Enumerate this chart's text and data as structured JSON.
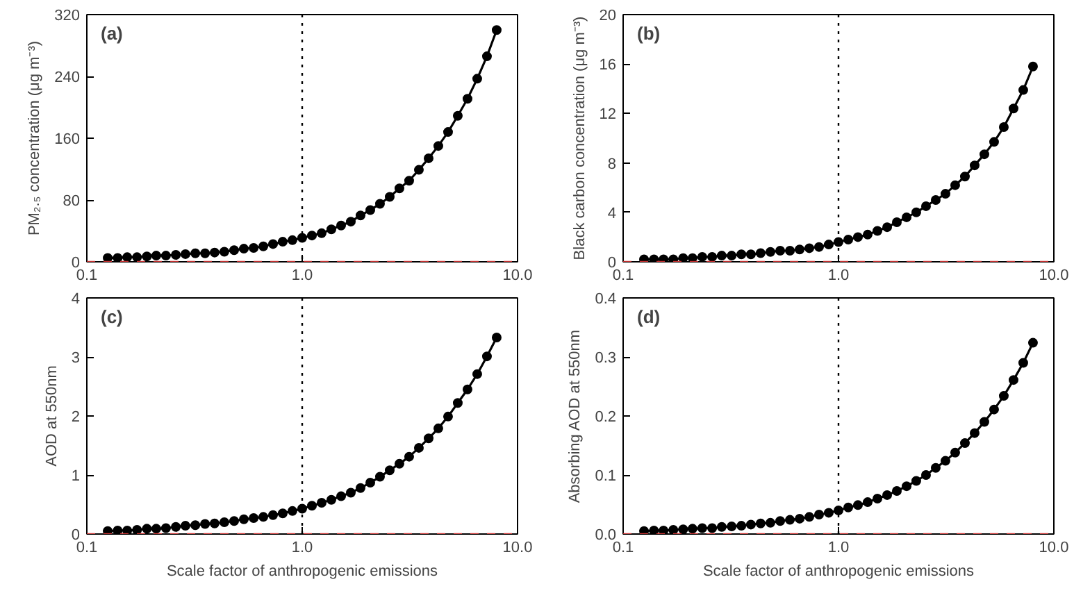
{
  "chart_data": [
    {
      "type": "line",
      "ylabel": "PM₂.₅ concentration (μg m⁻³)",
      "annotations": [
        "(a)"
      ],
      "log": "x",
      "marker": "circle",
      "line_style": "solid",
      "grid": false,
      "x": [
        0.125,
        0.139,
        0.154,
        0.171,
        0.19,
        0.21,
        0.233,
        0.259,
        0.287,
        0.319,
        0.354,
        0.392,
        0.435,
        0.483,
        0.536,
        0.595,
        0.66,
        0.732,
        0.812,
        0.901,
        1.0,
        1.11,
        1.231,
        1.366,
        1.516,
        1.682,
        1.866,
        2.071,
        2.297,
        2.549,
        2.828,
        3.138,
        3.482,
        3.864,
        4.287,
        4.757,
        5.278,
        5.856,
        6.498,
        7.21,
        8.0
      ],
      "series": [
        {
          "color": "#000000",
          "values": [
            5,
            5,
            6,
            6,
            7,
            8,
            8,
            9,
            10,
            11,
            11,
            12,
            13,
            15,
            17,
            18,
            20,
            23,
            26,
            28,
            31,
            34,
            37,
            42,
            47,
            52,
            60,
            67,
            75,
            84,
            95,
            105,
            119,
            134,
            150,
            168,
            189,
            211,
            237,
            266,
            300
          ]
        }
      ],
      "xlim": [
        0.1,
        10
      ],
      "xticks": [
        {
          "value": 0.1,
          "label": "0.1"
        },
        {
          "value": 1,
          "label": "1.0"
        },
        {
          "value": 10,
          "label": "10.0"
        }
      ],
      "ylim": [
        0,
        320
      ],
      "yticks": [
        0,
        80,
        160,
        240,
        320
      ],
      "ref_lines": [
        {
          "axis": "x",
          "value": 1,
          "color": "#000000",
          "line_style": "dotted"
        },
        {
          "axis": "y",
          "value": 0,
          "color": "#cc3333",
          "line_style": "dashed"
        }
      ]
    },
    {
      "type": "line",
      "ylabel": "Black carbon concentration (μg m⁻³)",
      "annotations": [
        "(b)"
      ],
      "log": "x",
      "marker": "circle",
      "line_style": "solid",
      "grid": false,
      "x": [
        0.125,
        0.139,
        0.154,
        0.171,
        0.19,
        0.21,
        0.233,
        0.259,
        0.287,
        0.319,
        0.354,
        0.392,
        0.435,
        0.483,
        0.536,
        0.595,
        0.66,
        0.732,
        0.812,
        0.901,
        1.0,
        1.11,
        1.231,
        1.366,
        1.516,
        1.682,
        1.866,
        2.071,
        2.297,
        2.549,
        2.828,
        3.138,
        3.482,
        3.864,
        4.287,
        4.757,
        5.278,
        5.856,
        6.498,
        7.21,
        8.0
      ],
      "series": [
        {
          "color": "#000000",
          "values": [
            0.2,
            0.2,
            0.2,
            0.2,
            0.3,
            0.3,
            0.4,
            0.4,
            0.5,
            0.5,
            0.6,
            0.6,
            0.7,
            0.8,
            0.9,
            0.9,
            1.0,
            1.1,
            1.2,
            1.4,
            1.6,
            1.8,
            2.0,
            2.2,
            2.5,
            2.8,
            3.2,
            3.6,
            4.0,
            4.5,
            5.0,
            5.5,
            6.2,
            6.9,
            7.8,
            8.7,
            9.7,
            10.9,
            12.4,
            13.9,
            15.8
          ]
        }
      ],
      "xlim": [
        0.1,
        10
      ],
      "xticks": [
        {
          "value": 0.1,
          "label": "0.1"
        },
        {
          "value": 1,
          "label": "1.0"
        },
        {
          "value": 10,
          "label": "10.0"
        }
      ],
      "ylim": [
        0,
        20
      ],
      "yticks": [
        0,
        4,
        8,
        12,
        16,
        20
      ],
      "ref_lines": [
        {
          "axis": "x",
          "value": 1,
          "color": "#000000",
          "line_style": "dotted"
        },
        {
          "axis": "y",
          "value": 0,
          "color": "#cc3333",
          "line_style": "dashed"
        }
      ]
    },
    {
      "type": "line",
      "xlabel": "Scale factor of anthropogenic emissions",
      "ylabel": "AOD at 550nm",
      "annotations": [
        "(c)"
      ],
      "log": "x",
      "marker": "circle",
      "line_style": "solid",
      "grid": false,
      "x": [
        0.125,
        0.139,
        0.154,
        0.171,
        0.19,
        0.21,
        0.233,
        0.259,
        0.287,
        0.319,
        0.354,
        0.392,
        0.435,
        0.483,
        0.536,
        0.595,
        0.66,
        0.732,
        0.812,
        0.901,
        1.0,
        1.11,
        1.231,
        1.366,
        1.516,
        1.682,
        1.866,
        2.071,
        2.297,
        2.549,
        2.828,
        3.138,
        3.482,
        3.864,
        4.287,
        4.757,
        5.278,
        5.856,
        6.498,
        7.21,
        8.0
      ],
      "series": [
        {
          "color": "#000000",
          "values": [
            0.05,
            0.06,
            0.06,
            0.07,
            0.09,
            0.09,
            0.1,
            0.12,
            0.14,
            0.15,
            0.17,
            0.18,
            0.2,
            0.22,
            0.25,
            0.27,
            0.29,
            0.32,
            0.35,
            0.39,
            0.43,
            0.48,
            0.53,
            0.58,
            0.64,
            0.7,
            0.78,
            0.87,
            0.97,
            1.08,
            1.19,
            1.31,
            1.46,
            1.62,
            1.79,
            1.99,
            2.22,
            2.45,
            2.71,
            3.01,
            3.33
          ]
        }
      ],
      "xlim": [
        0.1,
        10
      ],
      "xticks": [
        {
          "value": 0.1,
          "label": "0.1"
        },
        {
          "value": 1,
          "label": "1.0"
        },
        {
          "value": 10,
          "label": "10.0"
        }
      ],
      "ylim": [
        0,
        4
      ],
      "yticks": [
        0,
        1,
        2,
        3,
        4
      ],
      "ref_lines": [
        {
          "axis": "x",
          "value": 1,
          "color": "#000000",
          "line_style": "dotted"
        },
        {
          "axis": "y",
          "value": 0,
          "color": "#cc3333",
          "line_style": "dashed"
        }
      ]
    },
    {
      "type": "line",
      "xlabel": "Scale factor of anthropogenic emissions",
      "ylabel": "Absorbing AOD at 550nm",
      "annotations": [
        "(d)"
      ],
      "log": "x",
      "marker": "circle",
      "line_style": "solid",
      "grid": false,
      "x": [
        0.125,
        0.139,
        0.154,
        0.171,
        0.19,
        0.21,
        0.233,
        0.259,
        0.287,
        0.319,
        0.354,
        0.392,
        0.435,
        0.483,
        0.536,
        0.595,
        0.66,
        0.732,
        0.812,
        0.901,
        1.0,
        1.11,
        1.231,
        1.366,
        1.516,
        1.682,
        1.866,
        2.071,
        2.297,
        2.549,
        2.828,
        3.138,
        3.482,
        3.864,
        4.287,
        4.757,
        5.278,
        5.856,
        6.498,
        7.21,
        8.0
      ],
      "series": [
        {
          "color": "#000000",
          "values": [
            0.005,
            0.006,
            0.006,
            0.007,
            0.008,
            0.009,
            0.01,
            0.01,
            0.012,
            0.013,
            0.014,
            0.016,
            0.018,
            0.019,
            0.022,
            0.024,
            0.026,
            0.029,
            0.033,
            0.036,
            0.04,
            0.045,
            0.049,
            0.054,
            0.06,
            0.066,
            0.073,
            0.081,
            0.09,
            0.1,
            0.112,
            0.124,
            0.138,
            0.154,
            0.171,
            0.19,
            0.211,
            0.234,
            0.261,
            0.29,
            0.324
          ]
        }
      ],
      "xlim": [
        0.1,
        10
      ],
      "xticks": [
        {
          "value": 0.1,
          "label": "0.1"
        },
        {
          "value": 1,
          "label": "1.0"
        },
        {
          "value": 10,
          "label": "10.0"
        }
      ],
      "ylim": [
        0,
        0.4
      ],
      "yticks": [
        {
          "value": 0,
          "label": "0.0"
        },
        0.1,
        0.2,
        0.3,
        0.4
      ],
      "ref_lines": [
        {
          "axis": "x",
          "value": 1,
          "color": "#000000",
          "line_style": "dotted"
        },
        {
          "axis": "y",
          "value": 0,
          "color": "#cc3333",
          "line_style": "dashed"
        }
      ]
    }
  ]
}
